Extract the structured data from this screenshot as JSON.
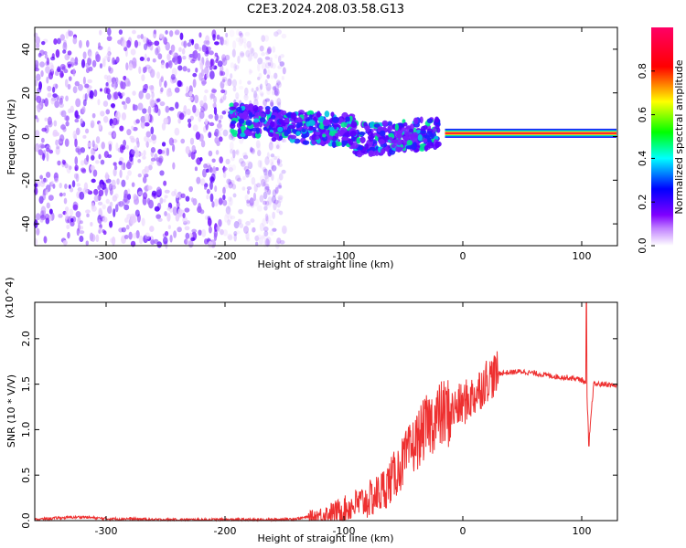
{
  "figure_title": "C2E3.2024.208.03.58.G13",
  "chart_data": [
    {
      "type": "heatmap",
      "xlabel": "Height of straight line (km)",
      "ylabel": "Frequency (Hz)",
      "xlim": [
        -360,
        130
      ],
      "ylim": [
        -50,
        50
      ],
      "x_ticks": [
        -300,
        -200,
        -100,
        0,
        100
      ],
      "y_ticks": [
        -40,
        -20,
        0,
        20,
        40
      ],
      "colorbar": {
        "label": "Normalized spectral amplitude",
        "range": [
          0.0,
          1.0
        ],
        "ticks": [
          0.0,
          0.2,
          0.4,
          0.6,
          0.8
        ],
        "colors": [
          "#ffffff",
          "#a000ff",
          "#0000ff",
          "#00ffff",
          "#00ff00",
          "#ffff00",
          "#ff0000",
          "#ff0066"
        ]
      },
      "features": [
        {
          "name": "scattered low-amplitude noise",
          "x_range": [
            -360,
            -150
          ],
          "freq_range": [
            -50,
            48
          ],
          "amplitude": 0.1
        },
        {
          "name": "signal band",
          "x_range": [
            -195,
            -20
          ],
          "freq_center": [
            8,
            2
          ],
          "amplitude": 0.3
        },
        {
          "name": "stable tone",
          "x_range": [
            -15,
            130
          ],
          "freq_center": 1.5,
          "amplitude": 0.95
        }
      ]
    },
    {
      "type": "line",
      "xlabel": "Height of straight line (km)",
      "ylabel": "SNR (10 * V/V)",
      "y_multiplier_label": "(x10^4)",
      "xlim": [
        -360,
        130
      ],
      "ylim": [
        0,
        2.4
      ],
      "x_ticks": [
        -300,
        -200,
        -100,
        0,
        100
      ],
      "y_ticks": [
        0.0,
        0.5,
        1.0,
        1.5,
        2.0
      ],
      "series": [
        {
          "color": "#ee3030",
          "x": [
            -360,
            -340,
            -320,
            -300,
            -280,
            -260,
            -240,
            -220,
            -200,
            -180,
            -160,
            -140,
            -130,
            -120,
            -110,
            -100,
            -90,
            -80,
            -70,
            -60,
            -50,
            -40,
            -30,
            -20,
            -10,
            0,
            10,
            20,
            30,
            40,
            50,
            60,
            70,
            80,
            90,
            100,
            104,
            106,
            110,
            120,
            130
          ],
          "values": [
            0.01,
            0.03,
            0.04,
            0.02,
            0.02,
            0.01,
            0.01,
            0.01,
            0.01,
            0.01,
            0.01,
            0.02,
            0.04,
            0.06,
            0.09,
            0.12,
            0.18,
            0.22,
            0.3,
            0.45,
            0.65,
            0.85,
            1.05,
            1.15,
            1.2,
            1.28,
            1.38,
            1.55,
            1.62,
            1.63,
            1.64,
            1.62,
            1.6,
            1.58,
            1.57,
            1.55,
            1.5,
            0.85,
            1.5,
            1.5,
            1.48
          ]
        }
      ]
    }
  ]
}
